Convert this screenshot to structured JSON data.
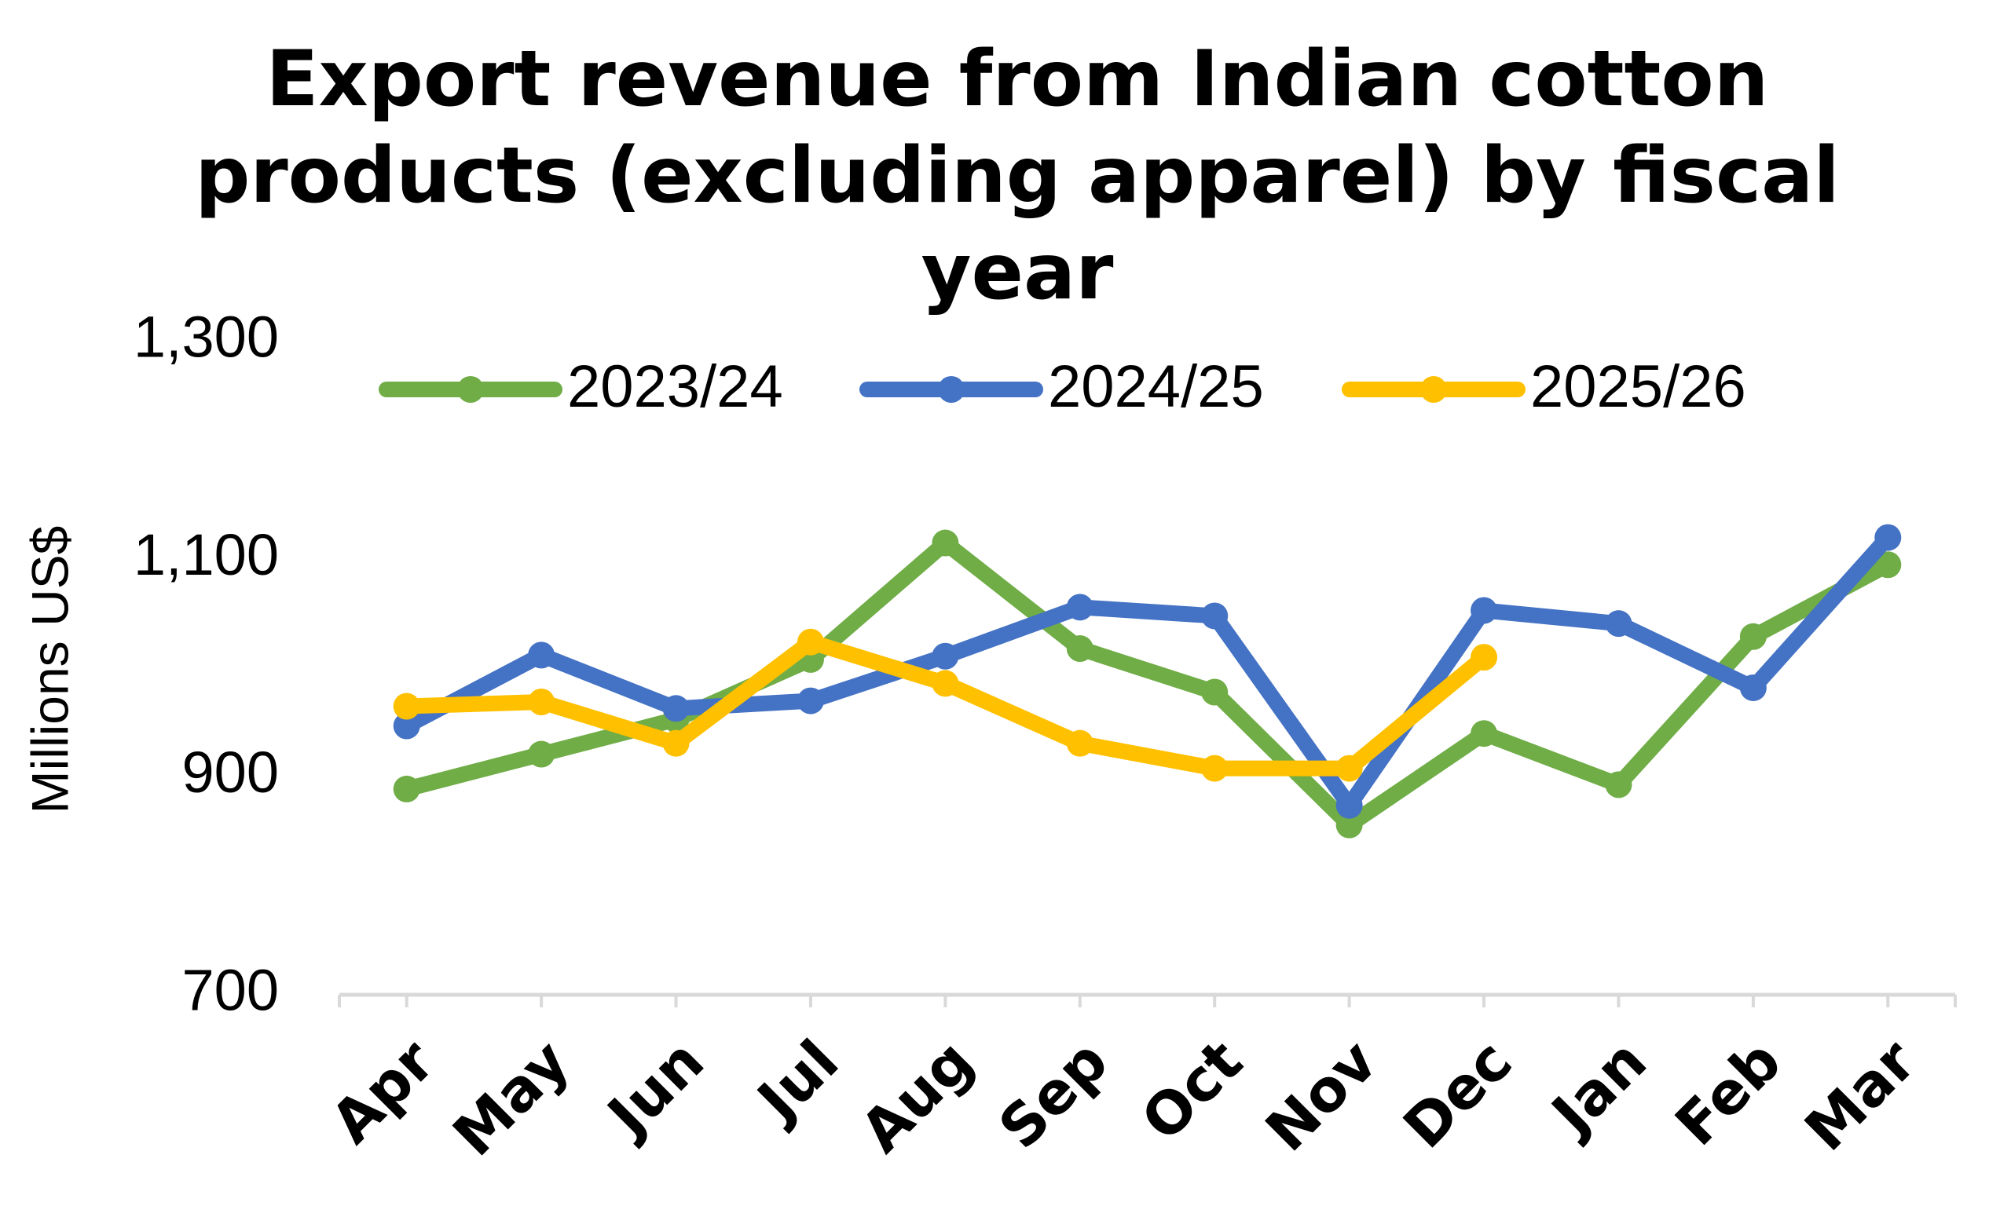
{
  "chart_data": {
    "type": "line",
    "title": [
      "Export revenue from Indian cotton",
      "products (excluding apparel) by fiscal",
      "year"
    ],
    "y_label": "Millions US$",
    "categories": [
      "Apr",
      "May",
      "Jun",
      "Jul",
      "Aug",
      "Sep",
      "Oct",
      "Nov",
      "Dec",
      "Jan",
      "Feb",
      "Mar"
    ],
    "series": [
      {
        "name": "2023/24",
        "color": "#70ad47",
        "values": [
          889,
          921,
          953,
          1008,
          1115,
          1018,
          978,
          856,
          940,
          893,
          1029,
          1095
        ]
      },
      {
        "name": "2024/25",
        "color": "#4472c4",
        "values": [
          947,
          1012,
          963,
          970,
          1011,
          1056,
          1048,
          874,
          1053,
          1041,
          982,
          1120
        ]
      },
      {
        "name": "2025/26",
        "color": "#ffc000",
        "values": [
          965,
          969,
          931,
          1024,
          986,
          931,
          908,
          908,
          1010,
          null,
          null,
          null
        ]
      }
    ],
    "ylim": [
      700,
      1300
    ],
    "yticks": [
      700,
      900,
      {
        "value": 1100,
        "label": "1,100"
      },
      {
        "value": 1300,
        "label": "1,300"
      }
    ],
    "legend": "top"
  }
}
